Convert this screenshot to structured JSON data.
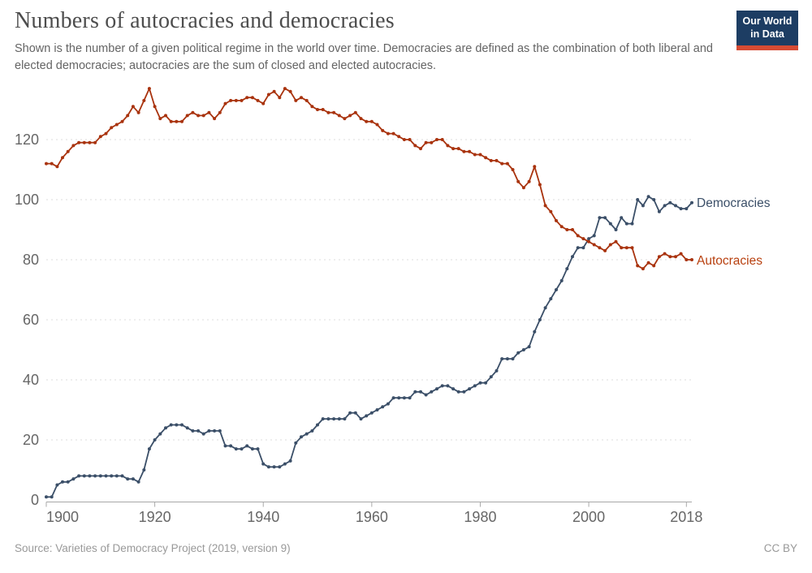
{
  "header": {
    "title": "Numbers of autocracies and democracies",
    "subtitle": "Shown is the number of a given political regime in the world over time. Democracies are defined as the combination of both liberal and elected democracies; autocracies are the sum of closed and elected autocracies.",
    "logo": {
      "line1": "Our World",
      "line2": "in Data",
      "bg_color": "#1d3d63",
      "bar_color": "#d64b33"
    }
  },
  "footer": {
    "source": "Source: Varieties of Democracy Project (2019, version 9)",
    "license": "CC BY"
  },
  "chart_data": {
    "type": "line",
    "title": "Numbers of autocracies and democracies",
    "xlabel": "",
    "ylabel": "",
    "xlim": [
      1900,
      2019
    ],
    "ylim": [
      0,
      140
    ],
    "grid": "horizontal-dashed",
    "legend_position": "right-end-labels",
    "x_ticks": [
      1900,
      1920,
      1940,
      1960,
      1980,
      2000,
      2018
    ],
    "y_ticks": [
      0,
      20,
      40,
      60,
      80,
      100,
      120
    ],
    "x": [
      1900,
      1901,
      1902,
      1903,
      1904,
      1905,
      1906,
      1907,
      1908,
      1909,
      1910,
      1911,
      1912,
      1913,
      1914,
      1915,
      1916,
      1917,
      1918,
      1919,
      1920,
      1921,
      1922,
      1923,
      1924,
      1925,
      1926,
      1927,
      1928,
      1929,
      1930,
      1931,
      1932,
      1933,
      1934,
      1935,
      1936,
      1937,
      1938,
      1939,
      1940,
      1941,
      1942,
      1943,
      1944,
      1945,
      1946,
      1947,
      1948,
      1949,
      1950,
      1951,
      1952,
      1953,
      1954,
      1955,
      1956,
      1957,
      1958,
      1959,
      1960,
      1961,
      1962,
      1963,
      1964,
      1965,
      1966,
      1967,
      1968,
      1969,
      1970,
      1971,
      1972,
      1973,
      1974,
      1975,
      1976,
      1977,
      1978,
      1979,
      1980,
      1981,
      1982,
      1983,
      1984,
      1985,
      1986,
      1987,
      1988,
      1989,
      1990,
      1991,
      1992,
      1993,
      1994,
      1995,
      1996,
      1997,
      1998,
      1999,
      2000,
      2001,
      2002,
      2003,
      2004,
      2005,
      2006,
      2007,
      2008,
      2009,
      2010,
      2011,
      2012,
      2013,
      2014,
      2015,
      2016,
      2017,
      2018,
      2019
    ],
    "series": [
      {
        "name": "Democracies",
        "color": "#3b4f68",
        "values": [
          1,
          1,
          5,
          6,
          6,
          7,
          8,
          8,
          8,
          8,
          8,
          8,
          8,
          8,
          8,
          7,
          7,
          6,
          10,
          17,
          20,
          22,
          24,
          25,
          25,
          25,
          24,
          23,
          23,
          22,
          23,
          23,
          23,
          18,
          18,
          17,
          17,
          18,
          17,
          17,
          12,
          11,
          11,
          11,
          12,
          13,
          19,
          21,
          22,
          23,
          25,
          27,
          27,
          27,
          27,
          27,
          29,
          29,
          27,
          28,
          29,
          30,
          31,
          32,
          34,
          34,
          34,
          34,
          36,
          36,
          35,
          36,
          37,
          38,
          38,
          37,
          36,
          36,
          37,
          38,
          39,
          39,
          41,
          43,
          47,
          47,
          47,
          49,
          50,
          51,
          56,
          60,
          64,
          67,
          70,
          73,
          77,
          81,
          84,
          84,
          87,
          88,
          94,
          94,
          92,
          90,
          94,
          92,
          92,
          100,
          98,
          101,
          100,
          96,
          98,
          99,
          98,
          97,
          97,
          99
        ]
      },
      {
        "name": "Autocracies",
        "color": "#a9330e",
        "values": [
          112,
          112,
          111,
          114,
          116,
          118,
          119,
          119,
          119,
          119,
          121,
          122,
          124,
          125,
          126,
          128,
          131,
          129,
          133,
          137,
          131,
          127,
          128,
          126,
          126,
          126,
          128,
          129,
          128,
          128,
          129,
          127,
          129,
          132,
          133,
          133,
          133,
          134,
          134,
          133,
          132,
          135,
          136,
          134,
          137,
          136,
          133,
          134,
          133,
          131,
          130,
          130,
          129,
          129,
          128,
          127,
          128,
          129,
          127,
          126,
          126,
          125,
          123,
          122,
          122,
          121,
          120,
          120,
          118,
          117,
          119,
          119,
          120,
          120,
          118,
          117,
          117,
          116,
          116,
          115,
          115,
          114,
          113,
          113,
          112,
          112,
          110,
          106,
          104,
          106,
          111,
          105,
          98,
          96,
          93,
          91,
          90,
          90,
          88,
          87,
          86,
          85,
          84,
          83,
          85,
          86,
          84,
          84,
          84,
          78,
          77,
          79,
          78,
          81,
          82,
          81,
          81,
          82,
          80,
          80
        ]
      }
    ]
  }
}
